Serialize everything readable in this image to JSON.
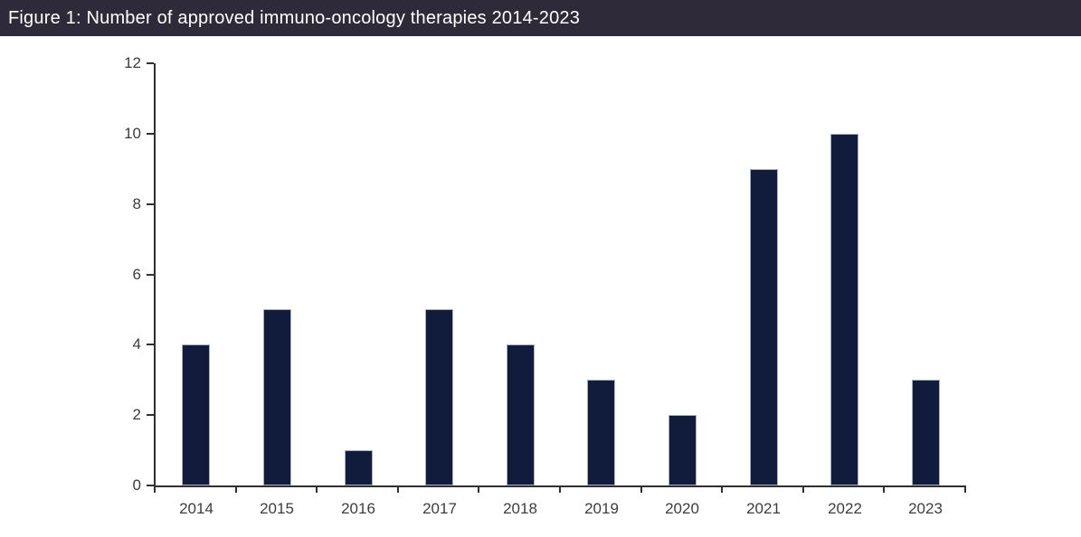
{
  "header": {
    "title": "Figure 1: Number of approved immuno-oncology therapies 2014-2023"
  },
  "colors": {
    "header_bg": "#2E2A3A",
    "header_text": "#FFFFFF",
    "bar_fill": "#111C3D",
    "bar_border": "#A9B1C6",
    "axis_line": "#303030",
    "tick_label": "#3D3D3D",
    "background": "#FFFFFF"
  },
  "chart_data": {
    "type": "bar",
    "title": "Figure 1: Number of approved immuno-oncology therapies 2014-2023",
    "categories": [
      "2014",
      "2015",
      "2016",
      "2017",
      "2018",
      "2019",
      "2020",
      "2021",
      "2022",
      "2023"
    ],
    "values": [
      4,
      5,
      1,
      5,
      4,
      3,
      2,
      9,
      10,
      3
    ],
    "xlabel": "",
    "ylabel": "",
    "ylim": [
      0,
      12
    ],
    "yticks": [
      0,
      2,
      4,
      6,
      8,
      10,
      12
    ],
    "grid": false,
    "legend": false,
    "bar_color": "#111C3D"
  }
}
